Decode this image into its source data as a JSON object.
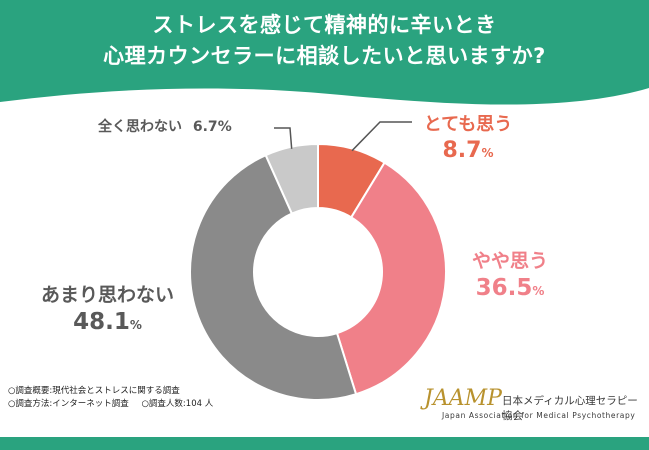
{
  "title_lines": [
    "ストレスを感じて精神的に辛いとき",
    "心理カウンセラーに相談したいと思いますか?"
  ],
  "chart_data": {
    "type": "pie",
    "donut": true,
    "start": "top",
    "direction": "clockwise",
    "slices": [
      {
        "label": "とても思う",
        "value": 8.7,
        "display": "8.7",
        "unit": "%",
        "color": "#e8694f",
        "label_color": "#e8694f"
      },
      {
        "label": "やや思う",
        "value": 36.5,
        "display": "36.5",
        "unit": "%",
        "color": "#f08089",
        "label_color": "#f08089"
      },
      {
        "label": "あまり思わない",
        "value": 48.1,
        "display": "48.1",
        "unit": "%",
        "color": "#8a8a8a",
        "label_color": "#595959"
      },
      {
        "label": "全く思わない",
        "value": 6.7,
        "display": "6.7",
        "unit": "%",
        "color": "#c9c9c9",
        "label_color": "#595959"
      }
    ]
  },
  "notes": {
    "overview_label": "○調査概要:現代社会とストレスに関する調査",
    "method_label": "○調査方法:インターネット調査",
    "count_label": "○調査人数:104 人"
  },
  "logo": {
    "mark": "JAAMP",
    "name_jp": "日本メディカル心理セラピー協会",
    "name_en": "Japan Association for Medical Psychotherapy"
  },
  "colors": {
    "header": "#2aa37f",
    "header_text": "#ffffff",
    "logo_gold": "#b8922e"
  }
}
